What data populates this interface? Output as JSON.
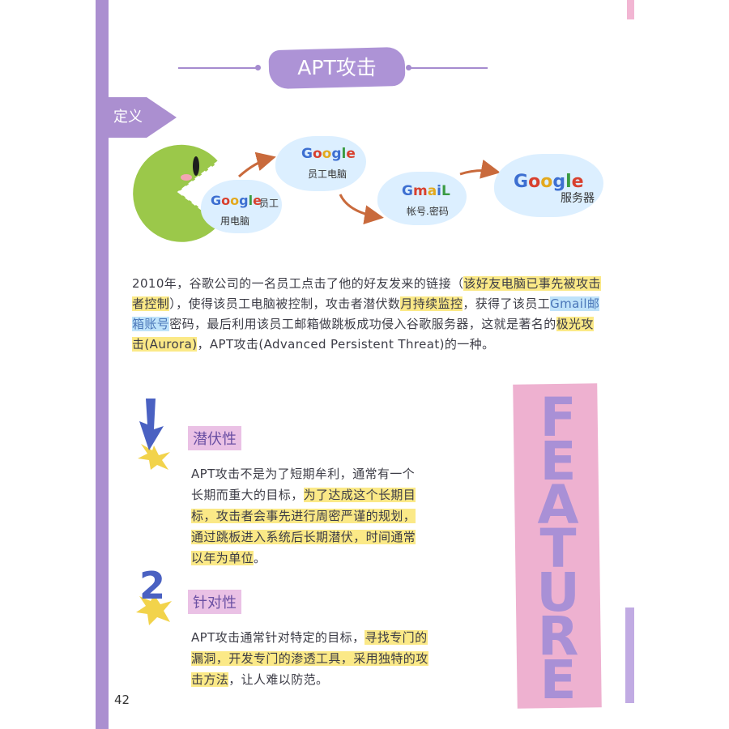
{
  "title": "APT攻击",
  "definition_label": "定义",
  "diagram": {
    "cloud1": {
      "brand": "Google",
      "caption": "员工",
      "caption2": "用电脑"
    },
    "cloud2": {
      "brand": "Google",
      "caption": "员工电脑"
    },
    "cloud3": {
      "brand": "GmaiL",
      "caption": "帐号.密码"
    },
    "cloud4": {
      "brand": "Google",
      "caption": "服务器"
    }
  },
  "intro": {
    "p1": "2010年，谷歌公司的一名员工点击了他的好友发来的链接（",
    "h1": "该好友电脑已事先被攻击者控制",
    "p2": "），使得该员工电脑被控制，攻击者潜伏数",
    "h2": "月持续监控",
    "p3": "，获得了该员工",
    "h3": "Gmail邮箱账号",
    "p4": "密码，最后利用该员工邮箱做跳板成功侵入谷歌服务器，这就是著名的",
    "h4": "极光攻击(Aurora)",
    "p5": "，APT攻击(Advanced Persistent Threat)的一种。"
  },
  "feature_letters": [
    "F",
    "E",
    "A",
    "T",
    "U",
    "R",
    "E"
  ],
  "sections": [
    {
      "number": "",
      "title": "潜伏性",
      "lines": [
        {
          "plain": "APT攻击不是为了短期牟利，通常有一个",
          "hl": ""
        },
        {
          "plain": "长期而重大的目标，",
          "hl": "为了达成这个长期目"
        },
        {
          "plain": "",
          "hl": "标，攻击者会事先进行周密严谨的规划，"
        },
        {
          "plain": "",
          "hl": "通过跳板进入系统后长期潜伏，时间通常"
        },
        {
          "plain": "",
          "hl": "以年为单位",
          "tail": "。"
        }
      ]
    },
    {
      "number": "2",
      "title": "针对性",
      "lines": [
        {
          "plain": "APT攻击通常针对特定的目标，",
          "hl": "寻找专门的"
        },
        {
          "plain": "",
          "hl": "漏洞，开发专门的渗透工具，采用独特的攻"
        },
        {
          "plain": "",
          "hl": "击方法",
          "tail": "，让人难以防范。"
        }
      ]
    }
  ],
  "page_number": "42",
  "colors": {
    "spine": "#ab8fd0",
    "feature_bg": "#eeb1d0",
    "feature_text": "#a990d6",
    "highlight": "#fbe987",
    "cloud": "#dcefff",
    "monster": "#9bc84a"
  }
}
